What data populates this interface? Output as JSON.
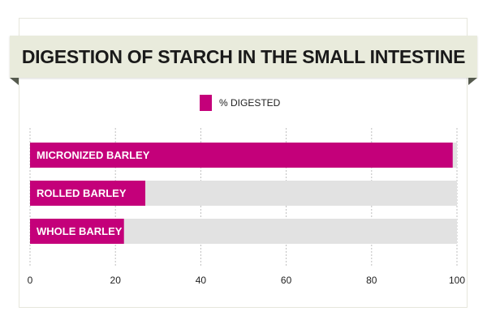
{
  "chart_data": {
    "type": "bar",
    "orientation": "horizontal",
    "title": "DIGESTION OF STARCH IN THE SMALL INTESTINE",
    "legend": {
      "label": "% DIGESTED",
      "placement": "top-center"
    },
    "categories": [
      "MICRONIZED BARLEY",
      "ROLLED BARLEY",
      "WHOLE BARLEY"
    ],
    "series": [
      {
        "name": "% DIGESTED",
        "values": [
          99,
          27,
          22
        ]
      }
    ],
    "xlim": [
      0,
      100
    ],
    "xticks": [
      0,
      20,
      40,
      60,
      80,
      100
    ],
    "xtick_labels": [
      "0",
      "20",
      "40",
      "60",
      "80",
      "100"
    ],
    "grid": "vertical dotted",
    "colors": {
      "bar": "#c4007a",
      "track": "#e2e2e2",
      "grid": "#bfbfbf",
      "text": "#222222"
    }
  }
}
